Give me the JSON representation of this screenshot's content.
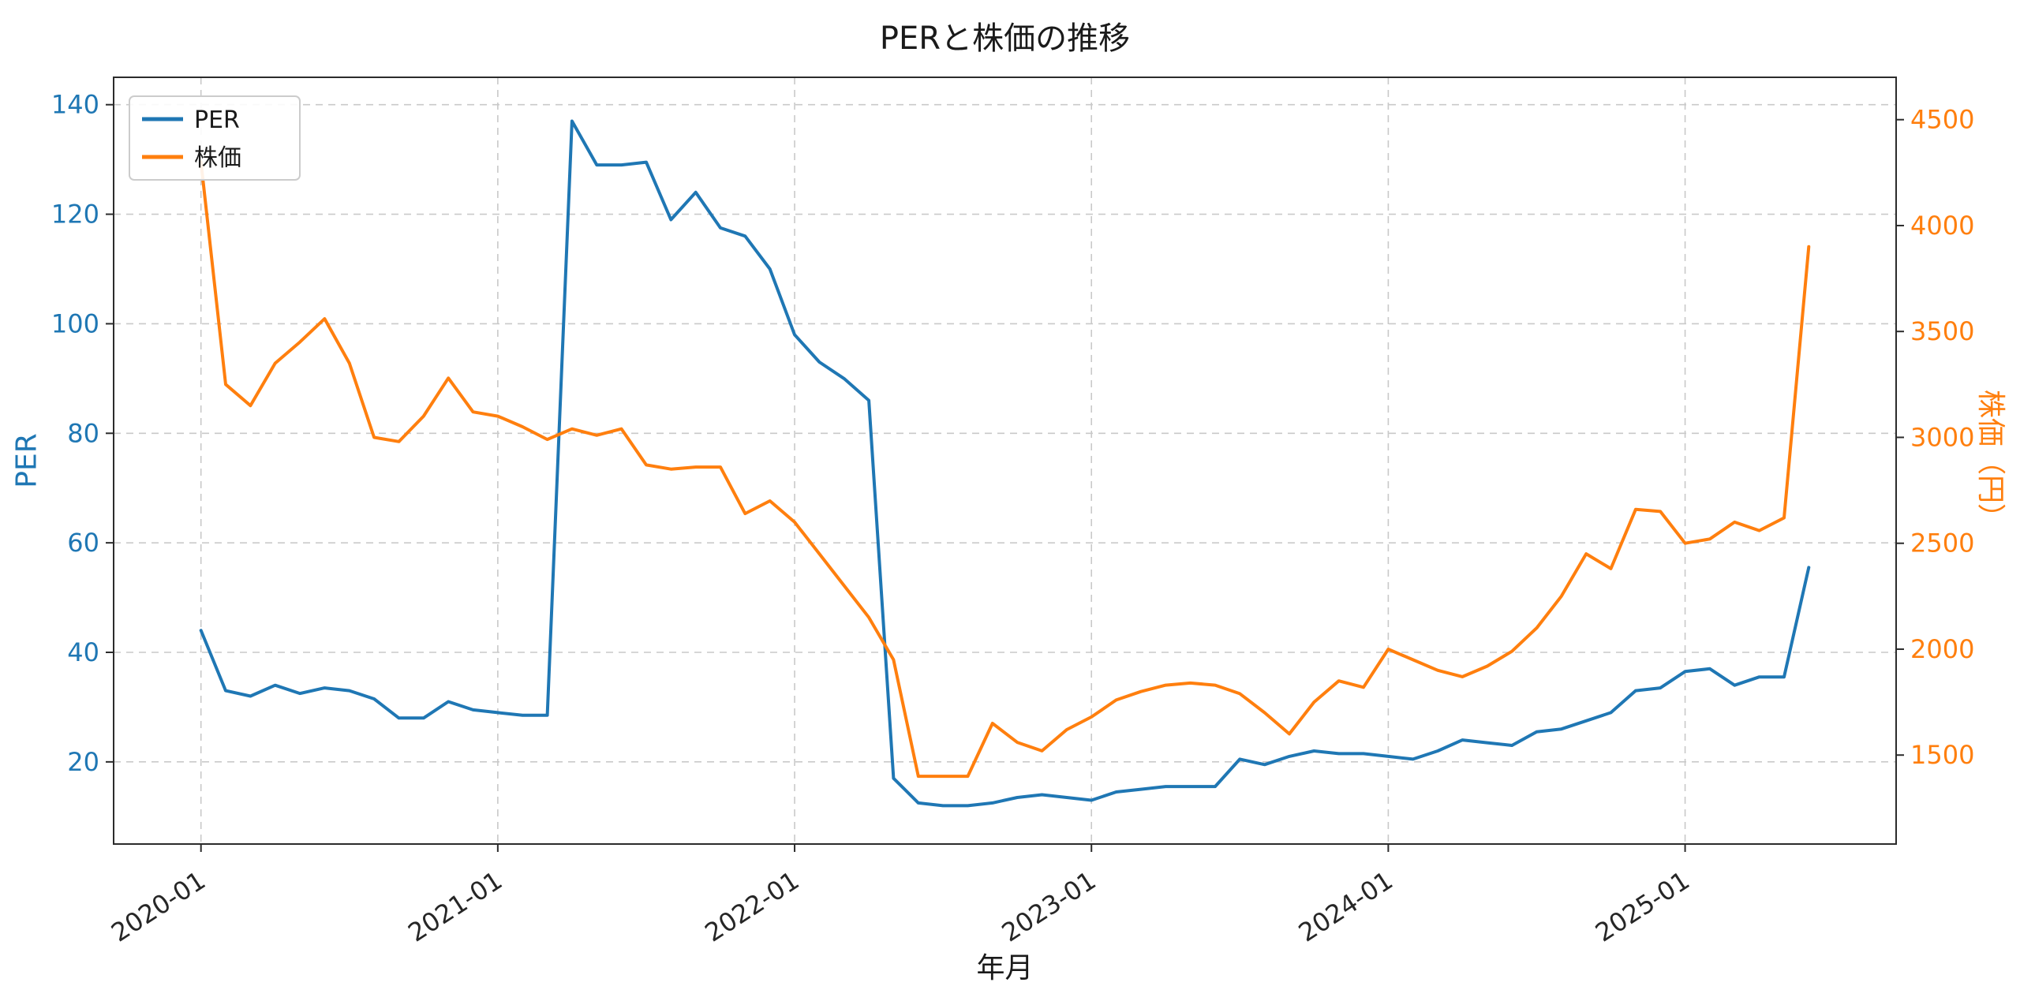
{
  "title": "PERと株価の推移",
  "axes": {
    "x_label": "年月",
    "y_left_label": "PER",
    "y_right_label": "株価（円）"
  },
  "colors": {
    "per_line": "#1f77b4",
    "price_line": "#ff7f0e",
    "grid": "#c9c9c9",
    "spine": "#2b2b2b",
    "x_tick_text": "#262626",
    "legend_border": "#cccccc",
    "legend_text": "#1a1a1a"
  },
  "chart_data": {
    "type": "line",
    "title": "PERと株価の推移",
    "xlabel": "年月",
    "ylabel_left": "PER",
    "ylabel_right": "株価（円）",
    "grid": true,
    "legend": {
      "position": "upper-left",
      "entries": [
        "PER",
        "株価"
      ]
    },
    "x_ticks": [
      "2020-01",
      "2021-01",
      "2022-01",
      "2023-01",
      "2024-01",
      "2025-01"
    ],
    "left_axis": {
      "label": "PER",
      "min": 5,
      "max": 145,
      "ticks": [
        20,
        40,
        60,
        80,
        100,
        120,
        140
      ]
    },
    "right_axis": {
      "label": "株価（円）",
      "min": 1080,
      "max": 4700,
      "ticks": [
        1500,
        2000,
        2500,
        3000,
        3500,
        4000,
        4500
      ]
    },
    "x": [
      "2020-01",
      "2020-02",
      "2020-03",
      "2020-04",
      "2020-05",
      "2020-06",
      "2020-07",
      "2020-08",
      "2020-09",
      "2020-10",
      "2020-11",
      "2020-12",
      "2021-01",
      "2021-02",
      "2021-03",
      "2021-04",
      "2021-05",
      "2021-06",
      "2021-07",
      "2021-08",
      "2021-09",
      "2021-10",
      "2021-11",
      "2021-12",
      "2022-01",
      "2022-02",
      "2022-03",
      "2022-04",
      "2022-05",
      "2022-06",
      "2022-07",
      "2022-08",
      "2022-09",
      "2022-10",
      "2022-11",
      "2022-12",
      "2023-01",
      "2023-02",
      "2023-03",
      "2023-04",
      "2023-05",
      "2023-06",
      "2023-07",
      "2023-08",
      "2023-09",
      "2023-10",
      "2023-11",
      "2023-12",
      "2024-01",
      "2024-02",
      "2024-03",
      "2024-04",
      "2024-05",
      "2024-06",
      "2024-07",
      "2024-08",
      "2024-09",
      "2024-10",
      "2024-11",
      "2024-12",
      "2025-01",
      "2025-02",
      "2025-03",
      "2025-04",
      "2025-05",
      "2025-06"
    ],
    "series": [
      {
        "name": "PER",
        "axis": "left",
        "color": "#1f77b4",
        "values": [
          44,
          33,
          32,
          34,
          32.5,
          33.5,
          33,
          31.5,
          28,
          28,
          31,
          29.5,
          29,
          28.5,
          28.5,
          137,
          129,
          129,
          129.5,
          119,
          124,
          117.5,
          116,
          110,
          98,
          93,
          90,
          86,
          17,
          12.5,
          12,
          12,
          12.5,
          13.5,
          14,
          13.5,
          13,
          14.5,
          15,
          15.5,
          15.5,
          15.5,
          20.5,
          19.5,
          21,
          22,
          21.5,
          21.5,
          21,
          20.5,
          22,
          24,
          23.5,
          23,
          25.5,
          26,
          27.5,
          29,
          33,
          33.5,
          36.5,
          37,
          34,
          35.5,
          35.5,
          55.5
        ]
      },
      {
        "name": "株価",
        "axis": "right",
        "color": "#ff7f0e",
        "values": [
          4300,
          3250,
          3150,
          3350,
          3450,
          3560,
          3350,
          3000,
          2980,
          3100,
          3280,
          3120,
          3100,
          3050,
          2990,
          3040,
          3010,
          3040,
          2870,
          2850,
          2860,
          2860,
          2640,
          2700,
          2600,
          2450,
          2300,
          2150,
          1950,
          1400,
          1400,
          1400,
          1650,
          1560,
          1520,
          1620,
          1680,
          1760,
          1800,
          1830,
          1840,
          1830,
          1790,
          1700,
          1600,
          1750,
          1850,
          1820,
          2000,
          1950,
          1900,
          1870,
          1920,
          1990,
          2100,
          2250,
          2450,
          2380,
          2660,
          2650,
          2500,
          2520,
          2600,
          2560,
          2620,
          3900
        ]
      }
    ]
  }
}
